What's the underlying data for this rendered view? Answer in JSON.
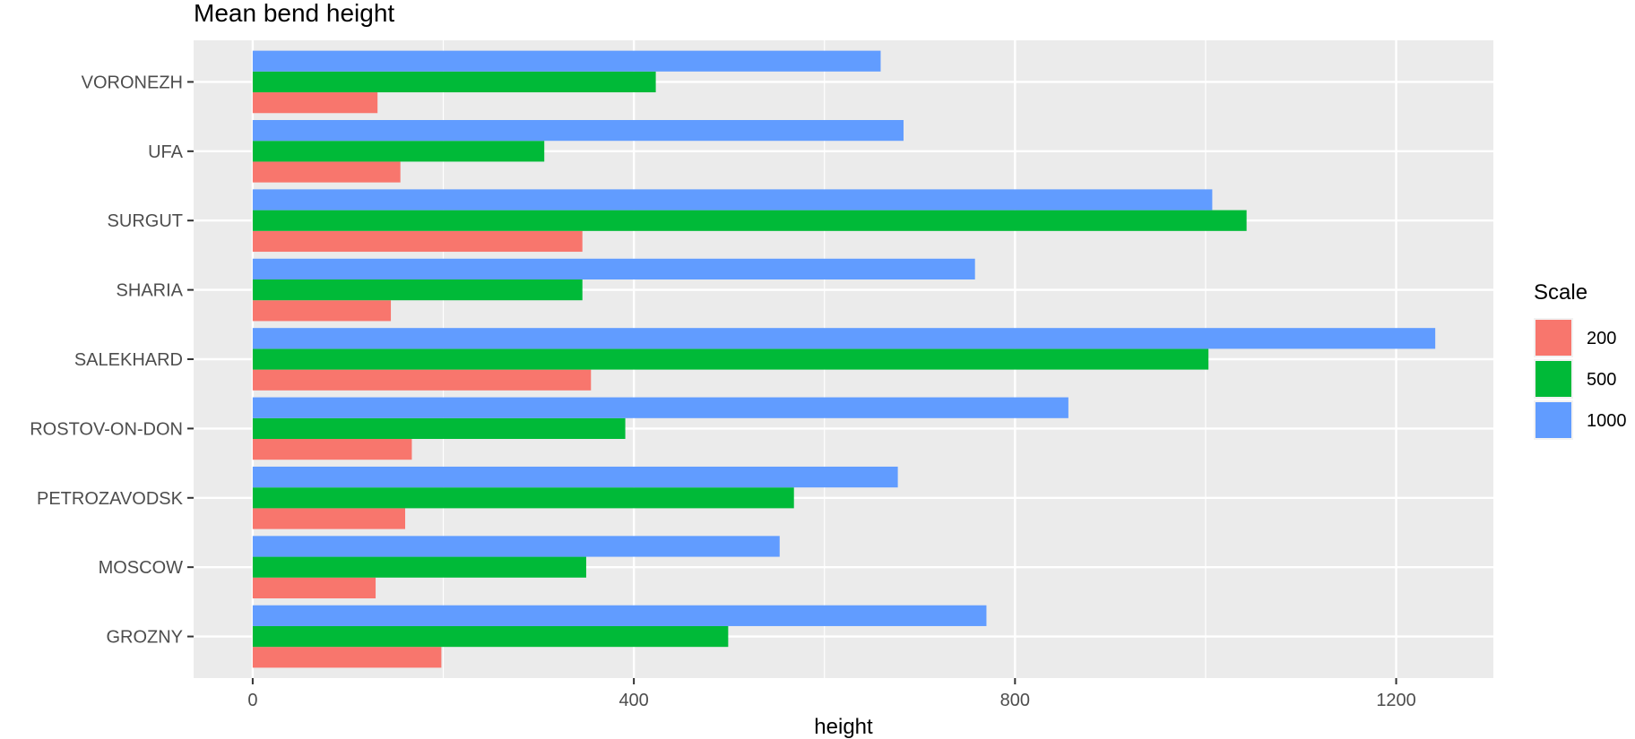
{
  "chart_data": {
    "type": "bar",
    "orientation": "horizontal",
    "title": "Mean bend height",
    "xlabel": "height",
    "ylabel": "",
    "xlim": [
      -62,
      1302
    ],
    "xticks": [
      0,
      400,
      800,
      1200
    ],
    "grid": true,
    "legend_position": "right",
    "legend_title": "Scale",
    "categories": [
      "GROZNY",
      "MOSCOW",
      "PETROZAVODSK",
      "ROSTOV-ON-DON",
      "SALEKHARD",
      "SHARIA",
      "SURGUT",
      "UFA",
      "VORONEZH"
    ],
    "series": [
      {
        "name": "200",
        "color": "#F8766D",
        "values": [
          198,
          129,
          160,
          167,
          355,
          145,
          346,
          155,
          131
        ]
      },
      {
        "name": "500",
        "color": "#00BA38",
        "values": [
          499,
          350,
          568,
          391,
          1003,
          346,
          1043,
          306,
          423
        ]
      },
      {
        "name": "1000",
        "color": "#619CFF",
        "values": [
          770,
          553,
          677,
          856,
          1241,
          758,
          1007,
          683,
          659
        ]
      }
    ]
  }
}
